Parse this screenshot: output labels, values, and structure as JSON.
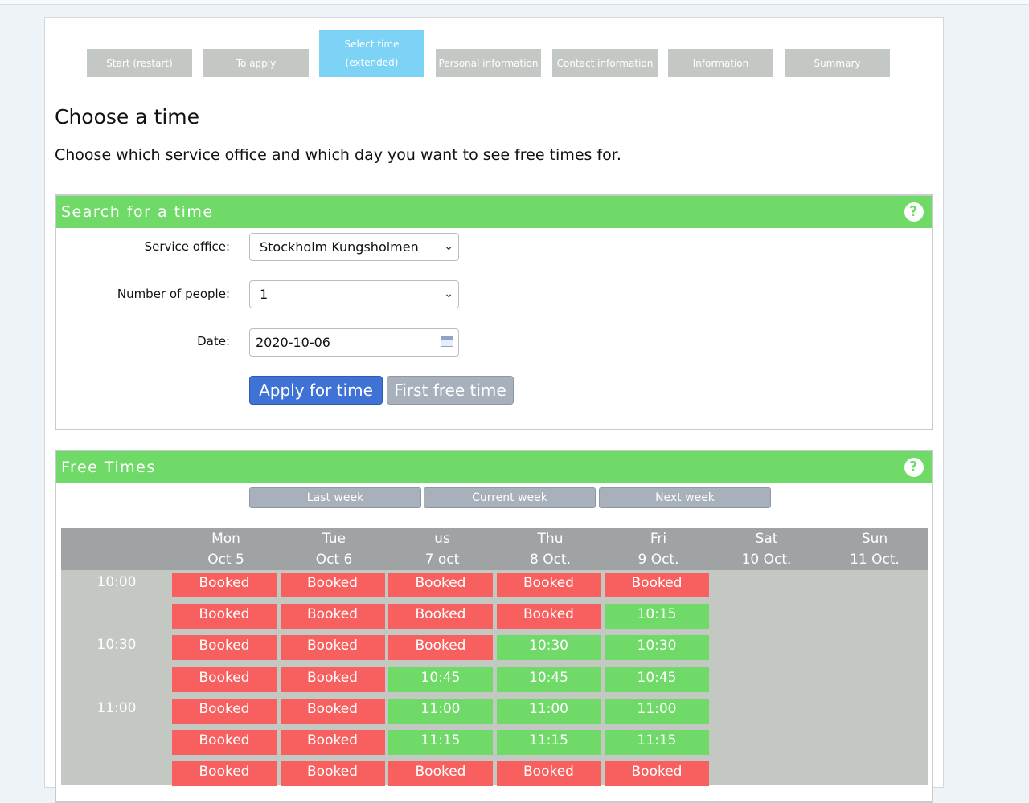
{
  "steps": [
    {
      "label": "Start (restart)"
    },
    {
      "label": "To apply"
    },
    {
      "label": "Select time",
      "label2": "(extended)"
    },
    {
      "label": "Personal information"
    },
    {
      "label": "Contact information"
    },
    {
      "label": "Information"
    },
    {
      "label": "Summary"
    }
  ],
  "title": "Choose a time",
  "intro": "Choose which service office and which day you want to see free times for.",
  "search": {
    "heading": "Search for a time",
    "help": "?",
    "office_label": "Service office:",
    "office_value": "Stockholm Kungsholmen",
    "people_label": "Number of people:",
    "people_value": "1",
    "date_label": "Date:",
    "date_value": "2020-10-06",
    "apply_label": "Apply for time",
    "first_label": "First free time"
  },
  "free": {
    "heading": "Free Times",
    "help": "?",
    "last_week": "Last week",
    "current_week": "Current week",
    "next_week": "Next week",
    "days": [
      {
        "name": "Mon",
        "date": "Oct 5"
      },
      {
        "name": "Tue",
        "date": "Oct 6"
      },
      {
        "name": "us",
        "date": "7 oct"
      },
      {
        "name": "Thu",
        "date": "8 Oct."
      },
      {
        "name": "Fri",
        "date": "9 Oct."
      },
      {
        "name": "Sat",
        "date": "10 Oct."
      },
      {
        "name": "Sun",
        "date": "11 Oct."
      }
    ],
    "time_labels": [
      "10:00",
      "",
      "10:30",
      "",
      "11:00",
      "",
      ""
    ],
    "rows": [
      [
        "Booked",
        "Booked",
        "Booked",
        "Booked",
        "Booked"
      ],
      [
        "Booked",
        "Booked",
        "Booked",
        "Booked",
        "10:15"
      ],
      [
        "Booked",
        "Booked",
        "Booked",
        "10:30",
        "10:30"
      ],
      [
        "Booked",
        "Booked",
        "10:45",
        "10:45",
        "10:45"
      ],
      [
        "Booked",
        "Booked",
        "11:00",
        "11:00",
        "11:00"
      ],
      [
        "Booked",
        "Booked",
        "11:15",
        "11:15",
        "11:15"
      ],
      [
        "Booked",
        "Booked",
        "Booked",
        "Booked",
        "Booked"
      ]
    ]
  },
  "colors": {
    "booked": "#f7605f",
    "free": "#6fda68",
    "header": "#6fda68",
    "active_step": "#7dd3f5"
  }
}
